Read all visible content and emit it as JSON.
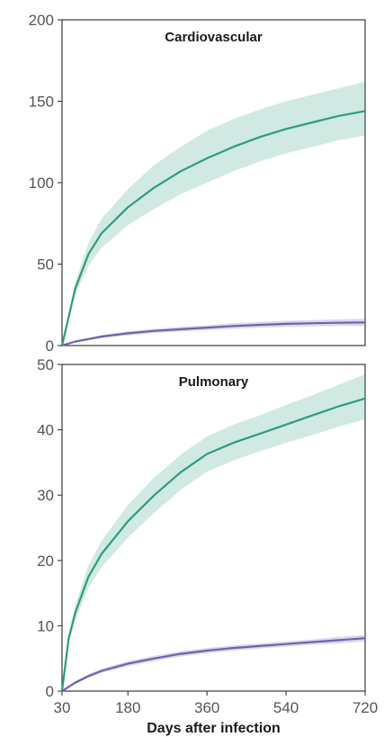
{
  "chart_data": [
    {
      "type": "line",
      "title": "Cardiovascular",
      "xlabel": "Days after infection",
      "ylabel": "",
      "xlim": [
        30,
        720
      ],
      "ylim": [
        0,
        200
      ],
      "xticks": [
        30,
        180,
        360,
        540,
        720
      ],
      "yticks": [
        0,
        50,
        100,
        150,
        200
      ],
      "grid": false,
      "colors": [
        "#2e9c7e",
        "#6a64b0"
      ],
      "series": [
        {
          "x": [
            30,
            60,
            90,
            120,
            180,
            240,
            300,
            360,
            420,
            480,
            540,
            600,
            660,
            720
          ],
          "values": [
            0,
            35,
            56,
            69,
            85,
            97,
            107,
            115,
            122,
            128,
            133,
            137,
            141,
            144
          ],
          "lower": [
            0,
            31,
            49,
            60,
            74,
            84,
            93,
            100,
            107,
            113,
            118,
            122,
            126,
            129
          ],
          "upper": [
            0,
            39,
            63,
            78,
            96,
            111,
            122,
            132,
            139,
            145,
            150,
            154,
            158,
            162
          ]
        },
        {
          "x": [
            30,
            60,
            90,
            120,
            180,
            240,
            300,
            360,
            420,
            480,
            540,
            600,
            660,
            720
          ],
          "values": [
            0,
            2.5,
            4,
            5.5,
            7.5,
            9,
            10,
            11,
            12,
            12.7,
            13.3,
            13.7,
            14,
            14.2
          ],
          "lower": [
            0,
            2,
            3.3,
            4.6,
            6.3,
            7.7,
            8.6,
            9.5,
            10.3,
            11,
            11.5,
            11.8,
            12,
            12.1
          ],
          "upper": [
            0,
            3,
            4.7,
            6.4,
            8.7,
            10.3,
            11.5,
            12.5,
            13.7,
            14.5,
            15.2,
            15.7,
            16.1,
            16.4
          ]
        }
      ]
    },
    {
      "type": "line",
      "title": "Pulmonary",
      "xlabel": "Days after infection",
      "ylabel": "",
      "xlim": [
        30,
        720
      ],
      "ylim": [
        0,
        50
      ],
      "xticks": [
        30,
        180,
        360,
        540,
        720
      ],
      "yticks": [
        0,
        10,
        20,
        30,
        40,
        50
      ],
      "grid": false,
      "colors": [
        "#2e9c7e",
        "#6a64b0"
      ],
      "series": [
        {
          "x": [
            30,
            45,
            60,
            90,
            120,
            180,
            240,
            300,
            360,
            420,
            480,
            540,
            600,
            660,
            720
          ],
          "values": [
            0,
            8,
            12,
            17.5,
            21,
            26,
            30,
            33.5,
            36.3,
            38,
            39.4,
            40.8,
            42.2,
            43.6,
            44.8
          ],
          "lower": [
            0,
            7.2,
            10.8,
            15.8,
            19,
            23.5,
            27.3,
            30.8,
            33.6,
            35.3,
            36.7,
            38,
            39.2,
            40.5,
            41.6
          ],
          "upper": [
            0,
            8.8,
            13.2,
            19.2,
            23,
            28.5,
            32.7,
            36.2,
            39,
            40.8,
            42.2,
            43.8,
            45.3,
            46.9,
            48.5
          ]
        },
        {
          "x": [
            30,
            60,
            90,
            120,
            180,
            240,
            300,
            360,
            420,
            480,
            540,
            600,
            660,
            720
          ],
          "values": [
            0,
            1.3,
            2.3,
            3.1,
            4.2,
            5,
            5.7,
            6.2,
            6.6,
            6.9,
            7.2,
            7.5,
            7.8,
            8.1
          ],
          "lower": [
            0,
            1.1,
            2,
            2.8,
            3.8,
            4.6,
            5.3,
            5.8,
            6.2,
            6.5,
            6.8,
            7.1,
            7.3,
            7.6
          ],
          "upper": [
            0,
            1.5,
            2.6,
            3.4,
            4.6,
            5.4,
            6.1,
            6.6,
            7,
            7.3,
            7.6,
            7.9,
            8.3,
            8.6
          ]
        }
      ]
    }
  ]
}
